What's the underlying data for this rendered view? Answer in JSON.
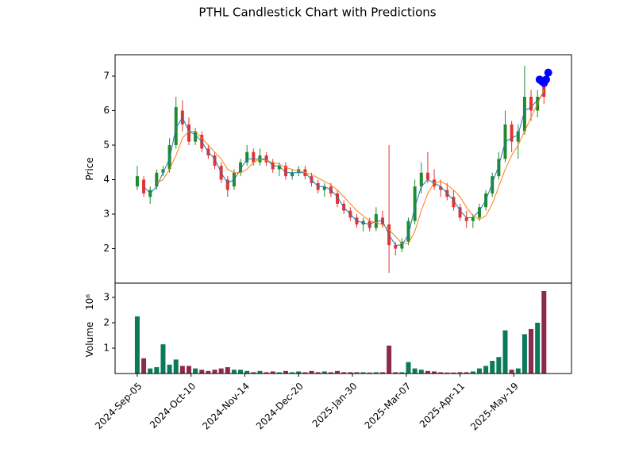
{
  "chart_data": {
    "type": "candlestick",
    "title": "PTHL Candlestick Chart with Predictions",
    "price_ylabel": "Price",
    "volume_ylabel": "Volume",
    "volume_offset": "10⁶",
    "x": [
      0,
      3,
      6,
      9,
      12,
      15,
      18,
      21,
      24,
      27,
      30,
      33,
      36,
      39,
      42,
      45,
      48,
      51,
      54,
      57,
      60,
      63,
      66,
      69,
      72,
      75,
      78,
      81,
      84,
      87,
      90,
      93,
      96,
      99,
      102,
      105,
      108,
      111,
      114,
      117,
      120,
      123,
      126,
      129,
      132,
      135,
      138,
      141,
      144,
      147,
      150,
      153,
      156,
      159,
      162,
      165,
      168,
      171,
      174,
      177,
      180,
      183,
      186,
      189
    ],
    "open": [
      3.8,
      4.0,
      3.5,
      3.8,
      4.2,
      4.3,
      5.0,
      6.0,
      5.6,
      5.1,
      5.3,
      4.9,
      4.7,
      4.4,
      4.0,
      3.8,
      4.2,
      4.5,
      4.8,
      4.5,
      4.7,
      4.5,
      4.3,
      4.4,
      4.1,
      4.2,
      4.3,
      4.1,
      3.9,
      3.7,
      3.8,
      3.6,
      3.3,
      3.1,
      2.9,
      2.7,
      2.8,
      2.6,
      2.9,
      2.7,
      2.1,
      2.0,
      2.2,
      2.8,
      3.8,
      4.2,
      4.0,
      3.8,
      3.7,
      3.5,
      3.2,
      2.9,
      2.8,
      2.9,
      3.2,
      3.6,
      4.1,
      4.6,
      5.6,
      5.1,
      5.4,
      6.4,
      6.0,
      6.8
    ],
    "high": [
      4.4,
      4.1,
      3.8,
      4.3,
      4.4,
      5.2,
      6.4,
      6.3,
      5.8,
      5.5,
      5.4,
      5.0,
      4.8,
      4.5,
      4.1,
      4.3,
      4.6,
      5.0,
      4.9,
      4.9,
      4.8,
      4.6,
      4.5,
      4.5,
      4.3,
      4.4,
      4.4,
      4.2,
      4.0,
      3.9,
      3.9,
      3.7,
      3.4,
      3.2,
      3.0,
      2.9,
      2.9,
      3.2,
      3.1,
      5.0,
      2.2,
      2.3,
      2.9,
      4.0,
      4.5,
      4.8,
      4.3,
      4.0,
      3.9,
      3.7,
      3.3,
      3.1,
      3.0,
      3.3,
      3.7,
      4.2,
      4.8,
      6.0,
      5.7,
      5.6,
      7.3,
      6.6,
      6.6,
      6.9
    ],
    "low": [
      3.7,
      3.5,
      3.3,
      3.7,
      4.1,
      4.2,
      4.9,
      5.4,
      5.0,
      5.0,
      4.8,
      4.6,
      4.3,
      3.9,
      3.5,
      3.7,
      4.1,
      4.4,
      4.4,
      4.4,
      4.4,
      4.2,
      4.1,
      4.0,
      4.0,
      4.1,
      4.0,
      3.8,
      3.6,
      3.5,
      3.5,
      3.2,
      3.0,
      2.8,
      2.6,
      2.5,
      2.5,
      2.5,
      2.6,
      1.3,
      1.8,
      1.9,
      2.1,
      2.7,
      3.6,
      3.9,
      3.7,
      3.5,
      3.4,
      3.1,
      2.8,
      2.6,
      2.6,
      2.8,
      3.1,
      3.5,
      4.0,
      4.5,
      4.8,
      4.6,
      5.3,
      5.7,
      5.8,
      6.2
    ],
    "close": [
      4.1,
      3.6,
      3.7,
      4.2,
      4.3,
      5.0,
      6.1,
      5.6,
      5.1,
      5.4,
      4.9,
      4.7,
      4.4,
      4.0,
      3.7,
      4.2,
      4.5,
      4.8,
      4.5,
      4.7,
      4.5,
      4.3,
      4.4,
      4.1,
      4.2,
      4.3,
      4.1,
      3.9,
      3.7,
      3.8,
      3.6,
      3.3,
      3.1,
      2.9,
      2.7,
      2.8,
      2.6,
      3.0,
      2.7,
      2.1,
      2.0,
      2.2,
      2.8,
      3.8,
      4.2,
      4.0,
      3.8,
      3.7,
      3.5,
      3.2,
      2.9,
      2.8,
      2.9,
      3.2,
      3.6,
      4.1,
      4.6,
      5.6,
      5.1,
      5.4,
      6.4,
      6.0,
      6.4,
      6.4
    ],
    "volume": [
      2.25,
      0.6,
      0.2,
      0.25,
      1.15,
      0.35,
      0.55,
      0.3,
      0.3,
      0.2,
      0.15,
      0.1,
      0.15,
      0.2,
      0.25,
      0.15,
      0.15,
      0.1,
      0.05,
      0.1,
      0.05,
      0.08,
      0.05,
      0.1,
      0.05,
      0.08,
      0.05,
      0.1,
      0.05,
      0.08,
      0.05,
      0.1,
      0.05,
      0.05,
      0.05,
      0.05,
      0.04,
      0.05,
      0.05,
      1.1,
      0.05,
      0.05,
      0.45,
      0.2,
      0.15,
      0.1,
      0.08,
      0.05,
      0.04,
      0.04,
      0.05,
      0.05,
      0.08,
      0.2,
      0.3,
      0.5,
      0.65,
      1.7,
      0.15,
      0.2,
      1.55,
      1.75,
      2.0,
      3.25
    ],
    "moving_averages": [
      {
        "color": "#1f77b4",
        "values": [
          null,
          3.8,
          3.6,
          3.8,
          4.2,
          4.6,
          5.5,
          5.8,
          5.4,
          5.3,
          5.1,
          4.8,
          4.6,
          4.2,
          3.9,
          4.0,
          4.3,
          4.6,
          4.6,
          4.6,
          4.6,
          4.4,
          4.4,
          4.2,
          4.2,
          4.2,
          4.2,
          4.0,
          3.8,
          3.8,
          3.7,
          3.5,
          3.2,
          3.0,
          2.8,
          2.75,
          2.7,
          2.8,
          2.8,
          2.4,
          2.1,
          2.1,
          2.4,
          3.2,
          3.8,
          4.0,
          3.9,
          3.8,
          3.6,
          3.4,
          3.1,
          2.9,
          2.9,
          3.1,
          3.4,
          3.9,
          4.4,
          5.1,
          5.2,
          5.3,
          6.0,
          6.1,
          6.3,
          6.5
        ]
      },
      {
        "color": "#ff7f0e",
        "values": [
          null,
          null,
          null,
          3.9,
          4.0,
          4.3,
          4.7,
          5.2,
          5.4,
          5.4,
          5.2,
          5.0,
          4.8,
          4.6,
          4.3,
          4.2,
          4.2,
          4.3,
          4.5,
          4.6,
          4.55,
          4.5,
          4.45,
          4.35,
          4.3,
          4.25,
          4.2,
          4.15,
          4.05,
          3.95,
          3.85,
          3.7,
          3.5,
          3.3,
          3.1,
          2.95,
          2.8,
          2.75,
          2.7,
          2.55,
          2.35,
          2.15,
          2.15,
          2.5,
          3.1,
          3.6,
          3.9,
          3.95,
          3.85,
          3.7,
          3.5,
          3.2,
          2.95,
          2.85,
          2.95,
          3.3,
          3.8,
          4.3,
          4.7,
          5.0,
          5.4,
          5.8,
          6.2,
          6.6
        ]
      }
    ],
    "predictions": {
      "color": "#0000ff",
      "x": [
        187,
        188,
        189,
        190,
        191
      ],
      "values": [
        6.9,
        6.85,
        6.8,
        6.9,
        7.1
      ]
    },
    "up_color": "#1e8c2e",
    "down_color": "#e63232",
    "volume_up_color": "#0b7a5a",
    "volume_down_color": "#8b2a4a",
    "xlim": [
      -10.3,
      201.8
    ],
    "ylim": [
      1.0,
      7.62
    ],
    "yticks": [
      2,
      3,
      4,
      5,
      6,
      7
    ],
    "volume_ylim": [
      0,
      3.56
    ],
    "volume_yticks": [
      1,
      2,
      3
    ],
    "xticks": [
      {
        "value": 0,
        "label": "2024-Sep-05"
      },
      {
        "value": 25,
        "label": "2024-Oct-10"
      },
      {
        "value": 50,
        "label": "2024-Nov-14"
      },
      {
        "value": 75,
        "label": "2024-Dec-20"
      },
      {
        "value": 100,
        "label": "2025-Jan-30"
      },
      {
        "value": 125,
        "label": "2025-Mar-07"
      },
      {
        "value": 150,
        "label": "2025-Apr-11"
      },
      {
        "value": 175,
        "label": "2025-May-19"
      }
    ]
  }
}
